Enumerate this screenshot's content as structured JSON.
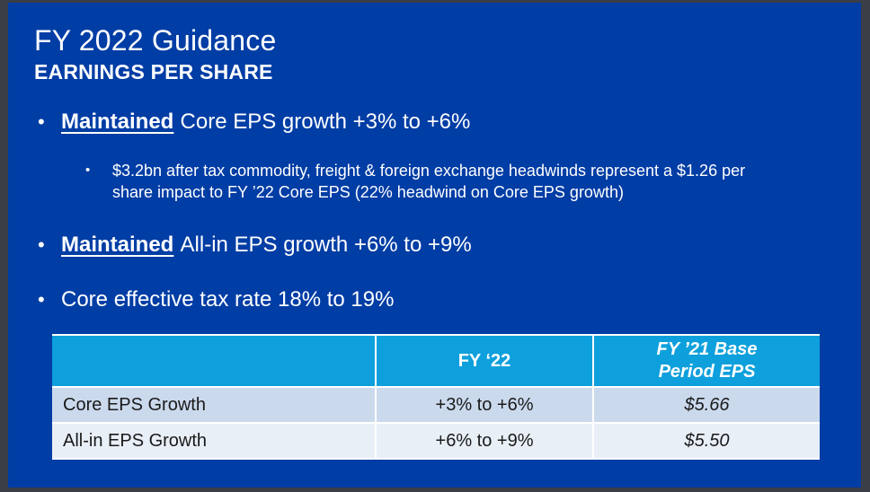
{
  "slide": {
    "title": "FY 2022 Guidance",
    "subtitle": "EARNINGS PER SHARE",
    "bullet_char": "•",
    "bullets": [
      {
        "emphasis": "Maintained",
        "text": "Core EPS growth +3% to +6%",
        "sub": "$3.2bn after tax commodity, freight & foreign exchange headwinds represent a $1.26 per share impact to FY ’22 Core EPS (22% headwind on Core EPS growth)"
      },
      {
        "emphasis": "Maintained",
        "text": "All-in EPS growth +6% to +9%"
      },
      {
        "emphasis": "",
        "text": "Core effective tax rate 18% to 19%"
      }
    ]
  },
  "table": {
    "headers": [
      "",
      "FY ‘22",
      "FY ’21 Base\nPeriod EPS"
    ],
    "rows": [
      {
        "label": "Core EPS Growth",
        "fy22": "+3% to +6%",
        "fy21": "$5.66"
      },
      {
        "label": "All-in EPS Growth",
        "fy22": "+6% to +9%",
        "fy21": "$5.50"
      }
    ]
  },
  "colors": {
    "slide_background": "#003DA5",
    "frame": "#3A3E46",
    "table_header": "#0EA0DC",
    "row_odd": "#CBD9ED",
    "row_even": "#E9EFF7",
    "text_light": "#FFFFFF",
    "text_dark": "#1A1A1A"
  }
}
